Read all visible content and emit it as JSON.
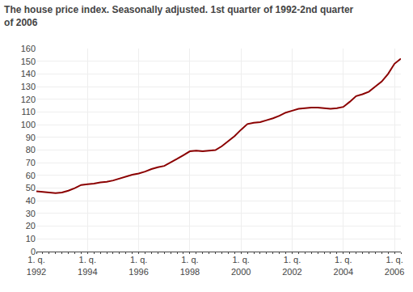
{
  "chart_data": {
    "type": "line",
    "title": "The house price index. Seasonally adjusted. 1st quarter of 1992-2nd quarter\nof 2006",
    "categories": [
      "1. q.\n1992",
      null,
      null,
      null,
      null,
      null,
      null,
      null,
      "1. q.\n1994",
      null,
      null,
      null,
      null,
      null,
      null,
      null,
      "1. q.\n1996",
      null,
      null,
      null,
      null,
      null,
      null,
      null,
      "1. q.\n1998",
      null,
      null,
      null,
      null,
      null,
      null,
      null,
      "1. q.\n2000",
      null,
      null,
      null,
      null,
      null,
      null,
      null,
      "1. q.\n2002",
      null,
      null,
      null,
      null,
      null,
      null,
      null,
      "1. q.\n2004",
      null,
      null,
      null,
      null,
      null,
      null,
      null,
      "1. q.\n2006",
      null
    ],
    "values": [
      47.5,
      47.0,
      46.5,
      46.0,
      46.5,
      48.0,
      50.0,
      52.5,
      53.0,
      53.5,
      54.5,
      55.0,
      56.0,
      57.5,
      59.0,
      60.5,
      61.5,
      63.0,
      65.0,
      66.5,
      67.5,
      70.0,
      73.0,
      76.0,
      79.0,
      79.5,
      79.0,
      79.5,
      80.0,
      83.0,
      87.0,
      91.0,
      96.0,
      100.5,
      101.5,
      102.0,
      103.5,
      105.0,
      107.0,
      109.5,
      111.0,
      112.5,
      113.0,
      113.5,
      113.5,
      113.0,
      112.5,
      113.0,
      114.0,
      118.0,
      122.5,
      124.0,
      126.0,
      130.0,
      134.0,
      140.0,
      148.0,
      152.0
    ],
    "color": "#8B0000",
    "ylim": [
      0,
      160
    ],
    "yticks": [
      0,
      10,
      20,
      30,
      40,
      50,
      60,
      70,
      80,
      90,
      100,
      110,
      120,
      130,
      140,
      150,
      160
    ],
    "grid": true
  }
}
